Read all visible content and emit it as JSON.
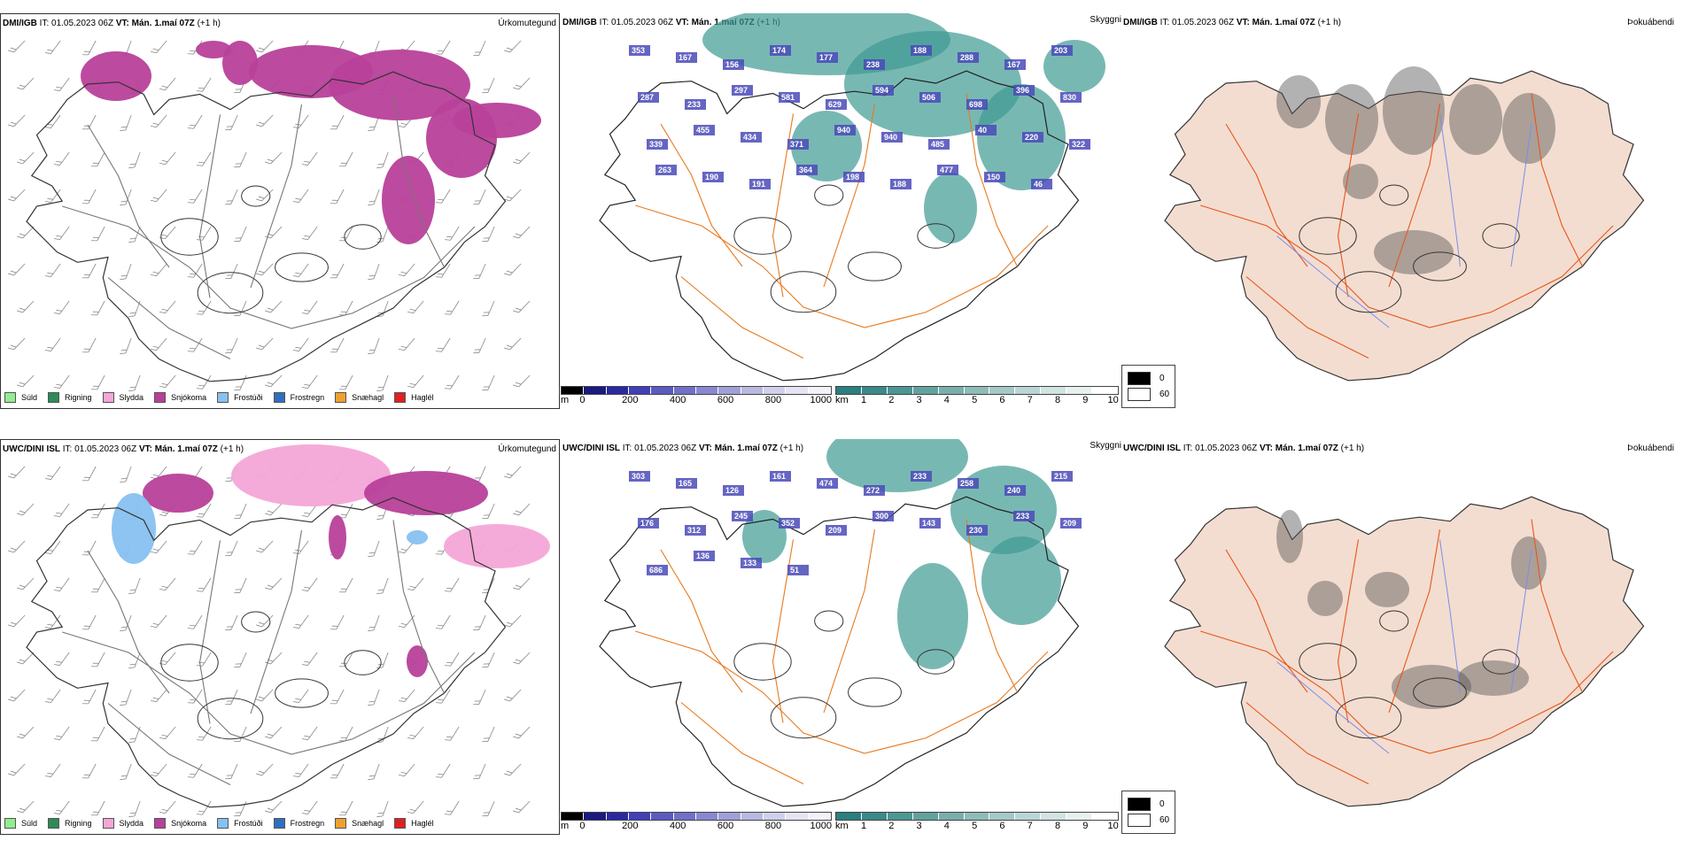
{
  "rows": [
    {
      "model": "DMI/IGB",
      "it": "IT: 01.05.2023 06Z",
      "vt": "VT: Mán. 1.maí 07Z",
      "lead": "(+1 h)",
      "labels": [
        "353",
        "167",
        "156",
        "174",
        "177",
        "238",
        "188",
        "288",
        "167",
        "203",
        "287",
        "233",
        "297",
        "581",
        "629",
        "594",
        "506",
        "698",
        "396",
        "830",
        "339",
        "455",
        "434",
        "371",
        "940",
        "940",
        "485",
        "40",
        "220",
        "322",
        "263",
        "190",
        "191",
        "364",
        "198",
        "188",
        "477",
        "150",
        "46"
      ]
    },
    {
      "model": "UWC/DINI ISL",
      "it": "IT: 01.05.2023 06Z",
      "vt": "VT: Mán. 1.maí 07Z",
      "lead": "(+1 h)",
      "labels": [
        "303",
        "165",
        "126",
        "161",
        "474",
        "272",
        "233",
        "258",
        "240",
        "215",
        "176",
        "312",
        "245",
        "352",
        "209",
        "300",
        "143",
        "230",
        "233",
        "209",
        "686",
        "136",
        "133",
        "51"
      ]
    }
  ],
  "panel_titles": {
    "precip": "Úrkomutegund",
    "visibility": "Skyggni",
    "fog": "Þokuábendi"
  },
  "precip_legend": [
    {
      "label": "Súld",
      "color": "#90ee90"
    },
    {
      "label": "Rigning",
      "color": "#2e8b57"
    },
    {
      "label": "Slydda",
      "color": "#f4a6d7"
    },
    {
      "label": "Snjókoma",
      "color": "#b8409a"
    },
    {
      "label": "Frostúði",
      "color": "#87c1f0"
    },
    {
      "label": "Frostregn",
      "color": "#2f6fc0"
    },
    {
      "label": "Snæhagl",
      "color": "#f0a030"
    },
    {
      "label": "Haglél",
      "color": "#e02020"
    }
  ],
  "height_scale": {
    "unit": "m",
    "ticks": [
      "0",
      "200",
      "400",
      "600",
      "800",
      "1000"
    ],
    "colors": [
      "#000000",
      "#1a1a80",
      "#2a2aa0",
      "#4040b8",
      "#5a5ac0",
      "#7070c8",
      "#8888d0",
      "#a0a0d8",
      "#b8b8e0",
      "#d0d0ec",
      "#e4e4f4",
      "#f2f2fa"
    ]
  },
  "vis_scale": {
    "unit": "km",
    "ticks": [
      "1",
      "2",
      "3",
      "4",
      "5",
      "6",
      "7",
      "8",
      "9",
      "10"
    ],
    "colors": [
      "#2a7f7f",
      "#3a8a88",
      "#4d9692",
      "#62a29e",
      "#78afab",
      "#8ebcb8",
      "#a4c9c6",
      "#bad6d4",
      "#d0e4e2",
      "#e6f1f0",
      "#ffffff"
    ]
  },
  "cloud_legend": [
    {
      "label": "0",
      "color": "#000000"
    },
    {
      "label": "60",
      "color": "#ffffff"
    }
  ],
  "colors": {
    "land_fog": "#f3ddd0",
    "roads": "#e8561a",
    "roads_vis": "#e8791e",
    "rivers": "#7a8ef0",
    "coast": "#222222",
    "snow": "#b8409a",
    "sleet": "#f4a6d7",
    "teal": "#3f9a93"
  }
}
